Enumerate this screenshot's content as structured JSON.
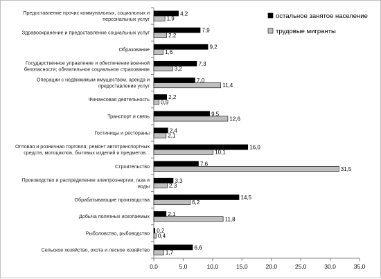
{
  "chart_data": {
    "type": "bar",
    "orientation": "horizontal",
    "categories": [
      "Предоставление прочих коммунальных, социальных и персональных услуг",
      "Здравоохранение и предоставление социальных услуг",
      "Образование",
      "Государственное управление и обеспечение военной безопасности; обязательное социальное страхование",
      "Операции с недвижимым имуществом, аренда и предоставление услуг",
      "Финансовая деятельность",
      "Транспорт и связь",
      "Гостиницы и рестораны",
      "Оптовая и розничная торговля; ремонт автотранспортных средств, мотоциклов, бытовых изделий и предметов...",
      "Строительство",
      "Производство и распределение электроэнергии, газа и воды",
      "Обрабатывающие производства",
      "Добыча полезных ископаемых",
      "Рыболовство, рыбоводство",
      "Сельское хозяйство, охота и лесное хозяйство"
    ],
    "category_lines": [
      [
        "Предоставление прочих коммунальных, социальных и",
        "персональных услуг"
      ],
      [
        "Здравоохранение и предоставление социальных услуг"
      ],
      [
        "Образование"
      ],
      [
        "Государственное управление и обеспечение военной",
        "безопасности; обязательное социальное страхование"
      ],
      [
        "Операции с недвижимым имуществом, аренда и",
        "предоставление услуг"
      ],
      [
        "Финансовая деятельность"
      ],
      [
        "Транспорт и связь"
      ],
      [
        "Гостиницы и рестораны"
      ],
      [
        "Оптовая и розничная торговля; ремонт автотранспортных",
        "средств, мотоциклов, бытовых изделий и предметов..."
      ],
      [
        "Строительство"
      ],
      [
        "Производство и распределение электроэнергии, газа и",
        "воды"
      ],
      [
        "Обрабатывающие производства"
      ],
      [
        "Добыча полезных ископаемых"
      ],
      [
        "Рыболовство, рыбоводство"
      ],
      [
        "Сельское хозяйство, охота и лесное хозяйство"
      ]
    ],
    "series": [
      {
        "name": "остальное занятое население",
        "color": "#000000",
        "values": [
          4.2,
          7.9,
          9.2,
          7.3,
          7.0,
          2.2,
          9.5,
          2.4,
          16.0,
          7.6,
          3.3,
          14.5,
          2.1,
          0.2,
          6.6
        ],
        "labels": [
          "4,2",
          "7,9",
          "9,2",
          "7,3",
          "7,0",
          "2,2",
          "9,5",
          "2,4",
          "16,0",
          "7,6",
          "3,3",
          "14,5",
          "2,1",
          "0,2",
          "6,6"
        ]
      },
      {
        "name": "трудовые мигранты",
        "color": "#bfbfbf",
        "values": [
          1.9,
          2.2,
          1.6,
          3.2,
          11.4,
          0.9,
          12.6,
          2.1,
          10.1,
          31.5,
          2.3,
          6.2,
          11.8,
          0.4,
          1.7
        ],
        "labels": [
          "1,9",
          "2,2",
          "1,6",
          "3,2",
          "11,4",
          "0,9",
          "12,6",
          "2,1",
          "10,1",
          "31,5",
          "2,3",
          "6,2",
          "11,8",
          "0,4",
          "1,7"
        ]
      }
    ],
    "xlim": [
      0,
      35
    ],
    "xticks": [
      "0,0",
      "5,0",
      "10,0",
      "15,0",
      "20,0",
      "25,0",
      "30,0",
      "35,0"
    ],
    "grid": false,
    "legend_position": "top-right"
  }
}
